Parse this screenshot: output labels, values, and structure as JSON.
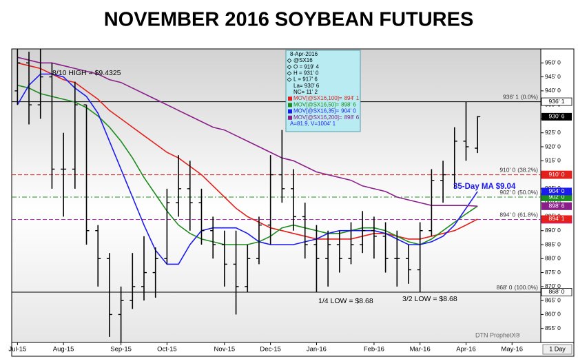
{
  "chart_data": {
    "type": "ohlc",
    "title": "NOVEMBER 2016 SOYBEAN FUTURES",
    "categories": [
      "Jul-15",
      null,
      null,
      null,
      "Aug-15",
      null,
      null,
      null,
      null,
      "Sep-15",
      null,
      null,
      null,
      "Oct-15",
      null,
      null,
      null,
      null,
      "Nov-15",
      null,
      null,
      null,
      "Dec-15",
      null,
      null,
      null,
      "Jan-16",
      null,
      null,
      null,
      null,
      "Feb-16",
      null,
      null,
      null,
      "Mar-16",
      null,
      null,
      null,
      "Apr-16",
      null,
      null,
      null,
      "May-16",
      null,
      null
    ],
    "ohlc": {
      "color": "#000000",
      "open": [
        940,
        950,
        935,
        945,
        912,
        912,
        935,
        890,
        880,
        860,
        865,
        870,
        875,
        880,
        900,
        905,
        900,
        890,
        885,
        878,
        870,
        880,
        892,
        910,
        905,
        895,
        885,
        880,
        885,
        880,
        885,
        890,
        888,
        880,
        880,
        876,
        890,
        908,
        910,
        922,
        919.5,
        null,
        null,
        null,
        null,
        null
      ],
      "high": [
        955,
        954,
        955,
        950,
        925,
        943.25,
        935,
        892,
        882,
        870,
        882,
        888,
        884,
        905,
        917,
        915,
        905,
        895,
        890,
        890,
        885,
        895,
        917,
        926,
        912,
        900,
        892,
        890,
        890,
        893,
        897,
        895,
        893,
        890,
        885,
        893,
        912,
        915,
        927,
        936.125,
        931,
        null,
        null,
        null,
        null,
        null
      ],
      "low": [
        935,
        928,
        930,
        905,
        895,
        905,
        885,
        870,
        852,
        850,
        862,
        865,
        866,
        878,
        895,
        890,
        885,
        880,
        870,
        860,
        868,
        878,
        885,
        900,
        890,
        880,
        868,
        870,
        875,
        878,
        882,
        880,
        875,
        870,
        871,
        868,
        888,
        900,
        905,
        915,
        917.75,
        null,
        null,
        null,
        null,
        null
      ],
      "close": [
        950,
        935,
        945,
        912,
        912,
        935,
        890,
        880,
        860,
        865,
        870,
        875,
        880,
        900,
        905,
        900,
        890,
        885,
        878,
        870,
        880,
        892,
        910,
        905,
        895,
        885,
        880,
        885,
        880,
        885,
        890,
        888,
        880,
        880,
        876,
        890,
        908,
        910,
        922,
        920,
        930.75,
        null,
        null,
        null,
        null,
        null
      ],
      "close_label": "930' 6"
    },
    "series": [
      {
        "name": "MOV[@SX16,100]=",
        "color": "#e3201b",
        "last_label": "894' 1",
        "values": [
          950,
          949,
          948,
          946,
          944,
          943,
          940,
          937,
          933,
          930,
          927,
          924,
          921,
          918,
          916,
          913,
          910,
          906,
          902,
          898,
          895,
          893,
          891,
          890,
          889,
          888,
          887,
          887,
          887,
          887,
          888,
          889,
          889,
          888,
          887,
          887,
          888,
          889,
          890,
          892,
          894.125,
          null,
          null,
          null,
          null,
          null
        ]
      },
      {
        "name": "MOV[@SX16,50]=",
        "color": "#1e8c1e",
        "last_label": "898' 6",
        "values": [
          942,
          941,
          939,
          938,
          937,
          936,
          934,
          931,
          927,
          922,
          916,
          909,
          903,
          897,
          892,
          889,
          887,
          886,
          885,
          885,
          885,
          886,
          888,
          891,
          892,
          891,
          890,
          889,
          889,
          890,
          891,
          891,
          890,
          888,
          886,
          885,
          887,
          890,
          893,
          896,
          898.75,
          null,
          null,
          null,
          null,
          null
        ]
      },
      {
        "name": "MOV[@SX16,35]=",
        "color": "#1b1bf0",
        "last_label": "904' 0",
        "values": [
          935,
          942,
          946,
          946,
          945,
          941,
          938,
          932,
          922,
          912,
          902,
          892,
          883,
          878,
          878,
          885,
          890,
          891,
          891,
          891,
          889,
          886,
          885,
          885,
          885,
          886,
          887,
          889,
          890,
          890,
          890,
          890,
          889,
          887,
          885,
          885,
          886,
          888,
          892,
          898,
          904,
          null,
          null,
          null,
          null,
          null
        ]
      },
      {
        "name": "MOV[@SX16,200]=",
        "color": "#8a1f8a",
        "last_label": "898' 6",
        "values": [
          952,
          951,
          950,
          950,
          949,
          948,
          947,
          946,
          944,
          943,
          941,
          939,
          937,
          935,
          933,
          931,
          929,
          927,
          926,
          924,
          922,
          920,
          918,
          916,
          915,
          913,
          911,
          910,
          909,
          908,
          906,
          905,
          904,
          902,
          901,
          900,
          899,
          899,
          899,
          899,
          898.75,
          null,
          null,
          null,
          null,
          null
        ]
      }
    ],
    "levels": [
      {
        "value": 936.125,
        "label": "936' 1",
        "pct": "(0.0%)",
        "color": "#000000",
        "style": "solid"
      },
      {
        "value": 910,
        "label": "910' 0",
        "pct": "(38.2%)",
        "color": "#e3201b",
        "style": "dashed"
      },
      {
        "value": 902,
        "label": "902' 0",
        "pct": "(50.0%)",
        "color": "#1e8c1e",
        "style": "dashdot"
      },
      {
        "value": 894,
        "label": "894' 0",
        "pct": "(61.8%)",
        "color": "#c21fc2",
        "style": "dashed"
      },
      {
        "value": 868,
        "label": "868' 0",
        "pct": "(100.0%)",
        "color": "#000000",
        "style": "solid"
      }
    ],
    "ylim": [
      850,
      955
    ],
    "yticks": [
      {
        "value": 855,
        "label": "855' 0"
      },
      {
        "value": 860,
        "label": "860' 0"
      },
      {
        "value": 865,
        "label": "865' 0"
      },
      {
        "value": 870,
        "label": "870' 0"
      },
      {
        "value": 875,
        "label": "875' 0"
      },
      {
        "value": 880,
        "label": "880' 0"
      },
      {
        "value": 885,
        "label": "885' 0"
      },
      {
        "value": 890,
        "label": "890' 0"
      },
      {
        "value": 895,
        "label": "895' 0"
      },
      {
        "value": 900,
        "label": "900' 0"
      },
      {
        "value": 905,
        "label": "905' 0"
      },
      {
        "value": 910,
        "label": "910' 0"
      },
      {
        "value": 915,
        "label": "915' 0"
      },
      {
        "value": 920,
        "label": "920' 0"
      },
      {
        "value": 925,
        "label": "925' 0"
      },
      {
        "value": 930,
        "label": "930' 0"
      },
      {
        "value": 935,
        "label": "935' 0"
      },
      {
        "value": 940,
        "label": "940' 0"
      },
      {
        "value": 945,
        "label": "945' 0"
      },
      {
        "value": 950,
        "label": "950' 0"
      }
    ],
    "info_box": {
      "date": "8-Apr-2016",
      "lines": [
        "@SX16",
        "O = 919' 4",
        "H = 931' 0",
        "L = 917' 6",
        "La= 930' 6",
        "NC= 11' 2"
      ],
      "footer": "A=81.9, V=1004' 1"
    },
    "annotations": [
      "8/10 HIGH = $9.4325",
      "35-Day MA $9.04",
      "1/4 LOW = $8.68",
      "3/2 LOW = $8.68"
    ],
    "watermark": "DTN ProphetX®",
    "interval": "1 Day"
  }
}
